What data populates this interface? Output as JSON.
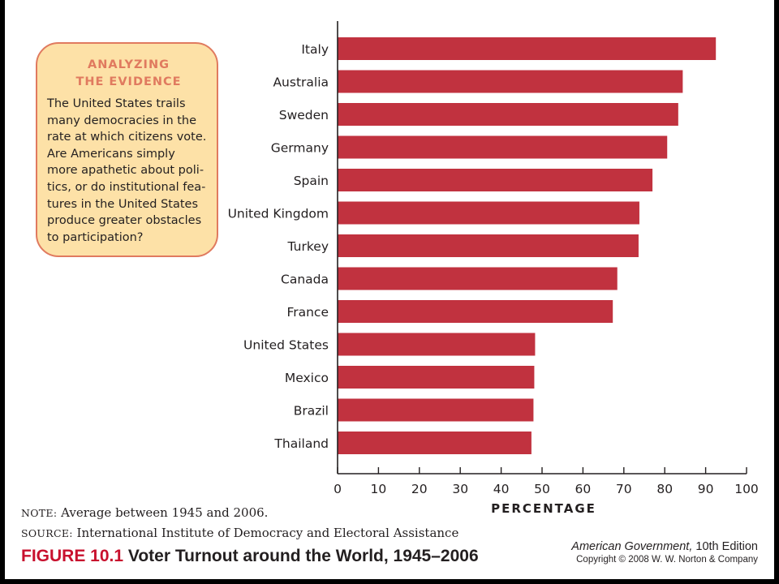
{
  "callout": {
    "title": "ANALYZING\nTHE EVIDENCE",
    "body": "The United States trails\nmany democracies in the\nrate at which citizens vote.\nAre Americans simply\nmore apathetic about poli-\ntics, or do institutional fea-\ntures in the United States\nproduce greater obstacles\nto participation?"
  },
  "chart_data": {
    "type": "bar",
    "orientation": "horizontal",
    "categories": [
      "Italy",
      "Australia",
      "Sweden",
      "Germany",
      "Spain",
      "United Kingdom",
      "Turkey",
      "Canada",
      "France",
      "United States",
      "Mexico",
      "Brazil",
      "Thailand"
    ],
    "values": [
      92.5,
      84.4,
      83.3,
      80.6,
      77.0,
      73.8,
      73.6,
      68.4,
      67.3,
      48.3,
      48.1,
      47.9,
      47.4
    ],
    "xlabel": "PERCENTAGE",
    "xlim": [
      0,
      100
    ],
    "xticks": [
      0,
      10,
      20,
      30,
      40,
      50,
      60,
      70,
      80,
      90,
      100
    ],
    "bar_color": "#c1323f",
    "grid": false
  },
  "notes": {
    "note_label": "NOTE:",
    "note_text": " Average between 1945 and 2006.",
    "source_label": "SOURCE:",
    "source_text": " International Institute of Democracy and Electoral Assistance"
  },
  "figure": {
    "number": "FIGURE 10.1",
    "title": " Voter Turnout around the World, 1945–2006"
  },
  "book": {
    "title": "American Government,",
    "edition": " 10th Edition",
    "copyright": "Copyright © 2008 W. W. Norton & Company"
  }
}
